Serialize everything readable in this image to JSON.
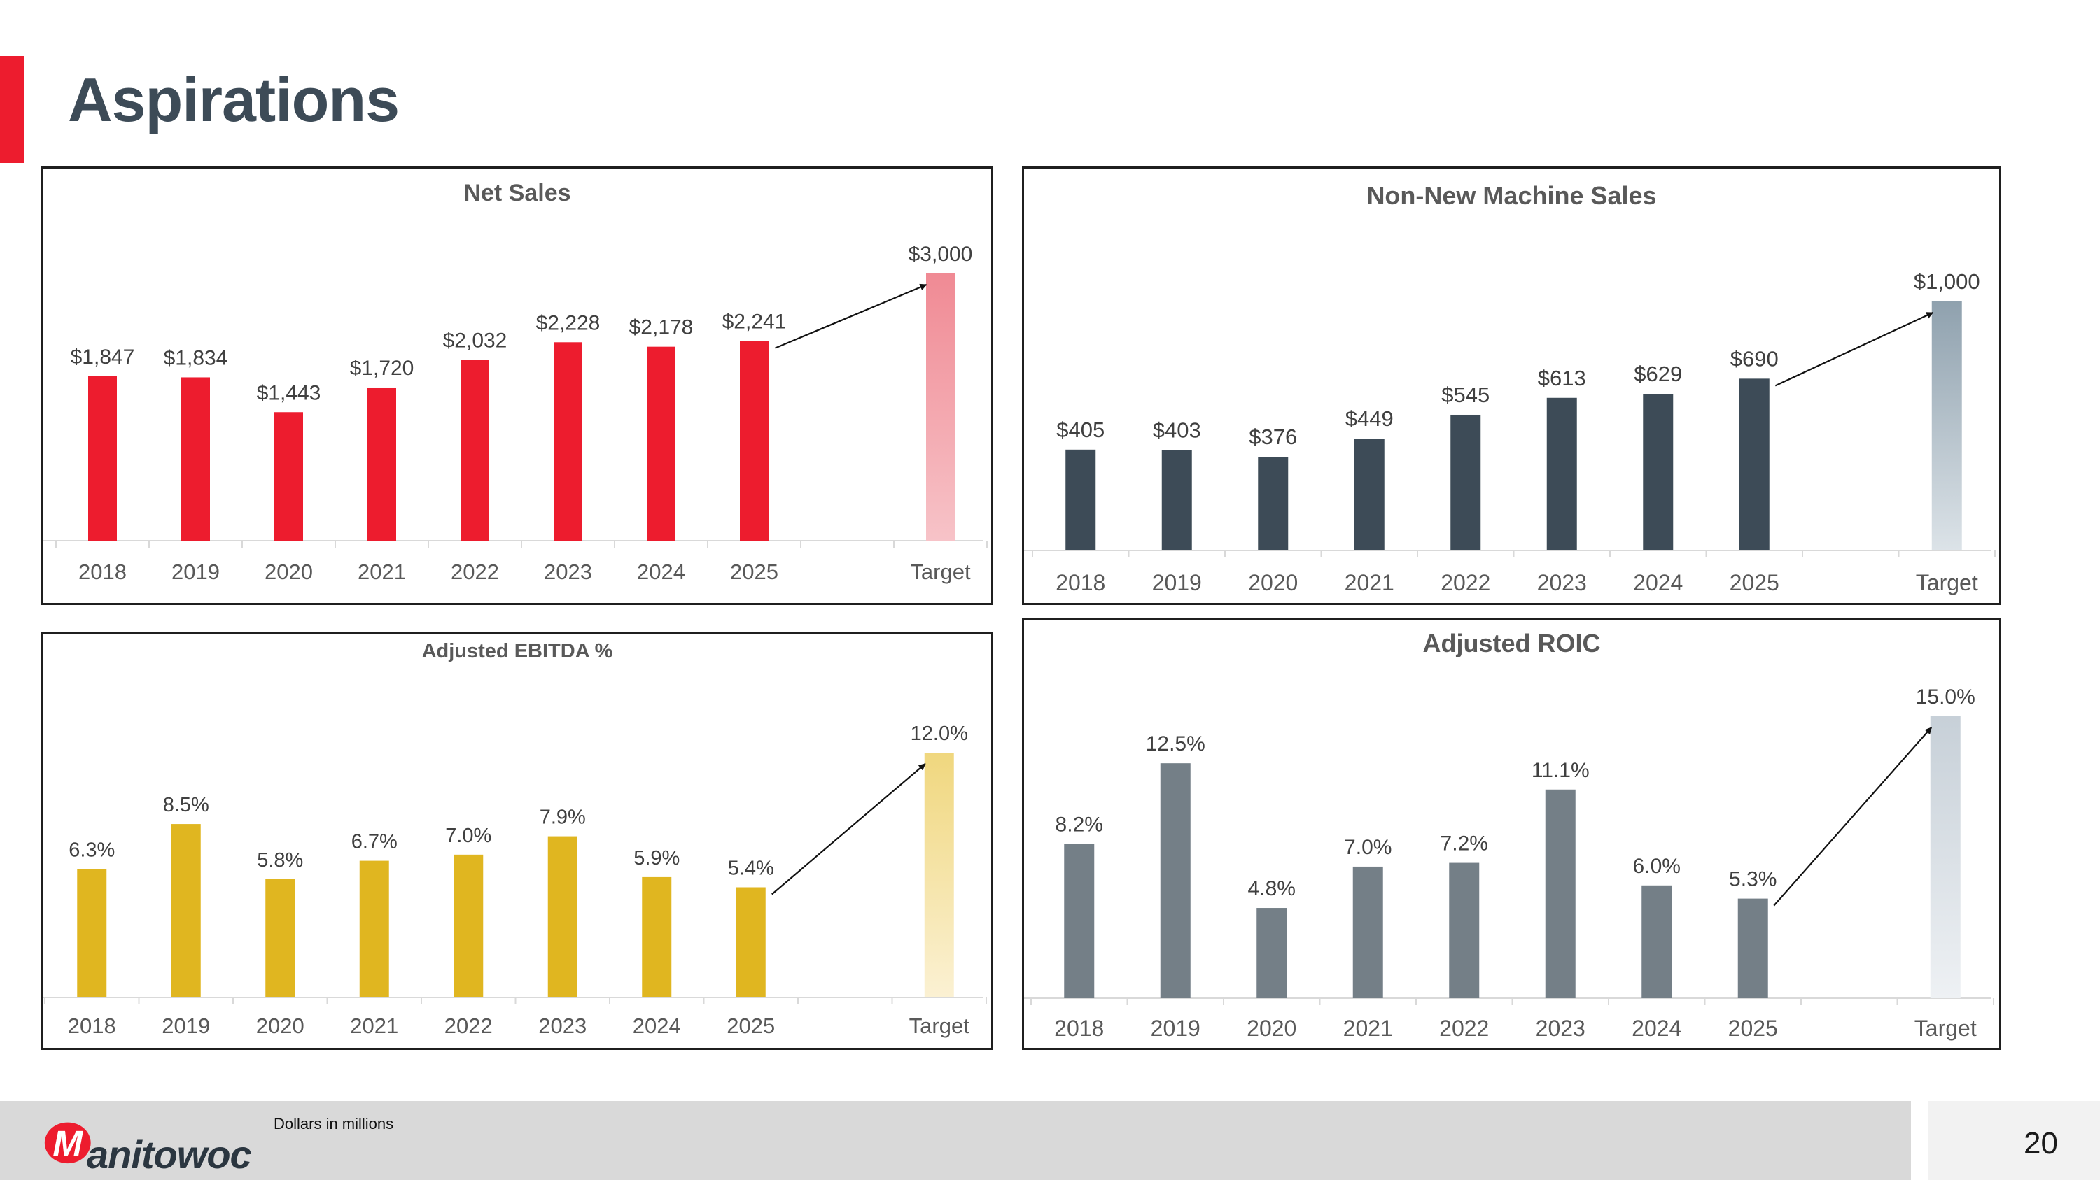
{
  "page": {
    "title": "Aspirations",
    "footnote": "Dollars in millions",
    "page_number": "20",
    "logo_text": "anitowoc",
    "logo_letter": "M"
  },
  "chart_data": [
    {
      "id": "net-sales",
      "type": "bar",
      "title": "Net Sales",
      "categories": [
        "2018",
        "2019",
        "2020",
        "2021",
        "2022",
        "2023",
        "2024",
        "2025",
        "Target"
      ],
      "values": [
        1847,
        1834,
        1443,
        1720,
        2032,
        2228,
        2178,
        2241,
        3000
      ],
      "labels": [
        "$1,847",
        "$1,834",
        "$1,443",
        "$1,720",
        "$2,032",
        "$2,228",
        "$2,178",
        "$2,241",
        "$3,000"
      ],
      "ylim": [
        0,
        3000
      ],
      "color": "#ed1c2e",
      "target_gradient": [
        "#f7c3c8",
        "#f08a94"
      ],
      "arrow_from_category": "2025",
      "arrow_to_category": "Target"
    },
    {
      "id": "non-new-machine-sales",
      "type": "bar",
      "title": "Non-New Machine Sales",
      "categories": [
        "2018",
        "2019",
        "2020",
        "2021",
        "2022",
        "2023",
        "2024",
        "2025",
        "Target"
      ],
      "values": [
        405,
        403,
        376,
        449,
        545,
        613,
        629,
        690,
        1000
      ],
      "labels": [
        "$405",
        "$403",
        "$376",
        "$449",
        "$545",
        "$613",
        "$629",
        "$690",
        "$1,000"
      ],
      "ylim": [
        0,
        1000
      ],
      "color": "#3d4b57",
      "target_gradient": [
        "#dce3e8",
        "#8fa1ae"
      ],
      "arrow_from_category": "2025",
      "arrow_to_category": "Target"
    },
    {
      "id": "adjusted-ebitda",
      "type": "bar",
      "title": "Adjusted EBITDA %",
      "categories": [
        "2018",
        "2019",
        "2020",
        "2021",
        "2022",
        "2023",
        "2024",
        "2025",
        "Target"
      ],
      "values": [
        6.3,
        8.5,
        5.8,
        6.7,
        7.0,
        7.9,
        5.9,
        5.4,
        12.0
      ],
      "labels": [
        "6.3%",
        "8.5%",
        "5.8%",
        "6.7%",
        "7.0%",
        "7.9%",
        "5.9%",
        "5.4%",
        "12.0%"
      ],
      "ylim": [
        0,
        12
      ],
      "color": "#e0b620",
      "target_gradient": [
        "#fbf1d3",
        "#f0d77e"
      ],
      "arrow_from_category": "2025",
      "arrow_to_category": "Target"
    },
    {
      "id": "adjusted-roic",
      "type": "bar",
      "title": "Adjusted ROIC",
      "categories": [
        "2018",
        "2019",
        "2020",
        "2021",
        "2022",
        "2023",
        "2024",
        "2025",
        "Target"
      ],
      "values": [
        8.2,
        12.5,
        4.8,
        7.0,
        7.2,
        11.1,
        6.0,
        5.3,
        15.0
      ],
      "labels": [
        "8.2%",
        "12.5%",
        "4.8%",
        "7.0%",
        "7.2%",
        "11.1%",
        "6.0%",
        "5.3%",
        "15.0%"
      ],
      "ylim": [
        0,
        15
      ],
      "color": "#747f87",
      "target_gradient": [
        "#eef1f4",
        "#c7d0d8"
      ],
      "arrow_from_category": "2025",
      "arrow_to_category": "Target"
    }
  ]
}
